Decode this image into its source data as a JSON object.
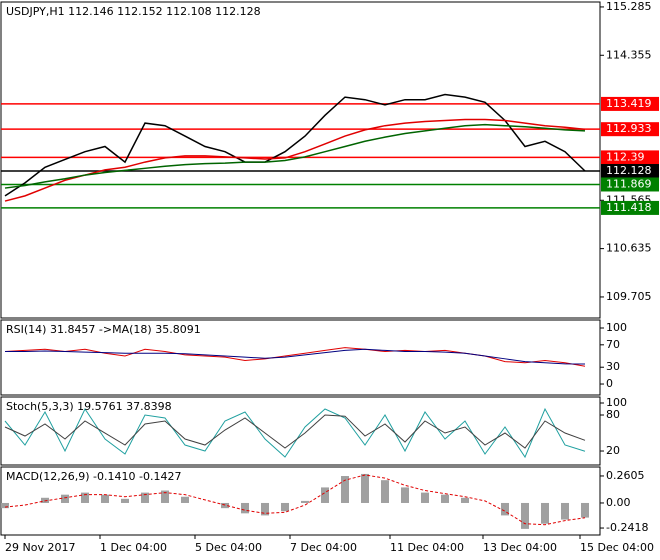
{
  "chart_data": [
    {
      "type": "line",
      "title": "USDJPY,H1  112.146 112.152 112.108 112.128",
      "ylim": [
        109.3,
        115.38
      ],
      "yticks": [
        115.285,
        114.355,
        111.565,
        110.635,
        109.705
      ],
      "levels": [
        {
          "value": 113.419,
          "color": "#ff0000"
        },
        {
          "value": 112.933,
          "color": "#ff0000"
        },
        {
          "value": 112.39,
          "color": "#ff0000"
        },
        {
          "value": 112.128,
          "color": "#000000"
        },
        {
          "value": 111.869,
          "color": "#008000"
        },
        {
          "value": 111.418,
          "color": "#008000"
        }
      ],
      "series": [
        {
          "color": "#000000",
          "values": [
            111.65,
            111.9,
            112.2,
            112.35,
            112.5,
            112.6,
            112.3,
            113.05,
            113.0,
            112.8,
            112.6,
            112.5,
            112.3,
            112.3,
            112.5,
            112.8,
            113.2,
            113.55,
            113.5,
            113.4,
            113.5,
            113.5,
            113.6,
            113.55,
            113.45,
            113.1,
            112.6,
            112.7,
            112.5,
            112.128
          ]
        },
        {
          "color": "#e00000",
          "values": [
            111.55,
            111.65,
            111.8,
            111.95,
            112.05,
            112.15,
            112.2,
            112.3,
            112.38,
            112.42,
            112.42,
            112.4,
            112.38,
            112.36,
            112.38,
            112.5,
            112.65,
            112.8,
            112.92,
            113.0,
            113.05,
            113.08,
            113.1,
            113.12,
            113.12,
            113.1,
            113.05,
            113.0,
            112.97,
            112.93
          ]
        },
        {
          "color": "#006400",
          "values": [
            111.8,
            111.85,
            111.92,
            111.98,
            112.05,
            112.1,
            112.14,
            112.18,
            112.22,
            112.25,
            112.27,
            112.28,
            112.3,
            112.3,
            112.33,
            112.4,
            112.5,
            112.6,
            112.7,
            112.78,
            112.85,
            112.9,
            112.95,
            113.0,
            113.02,
            113.0,
            112.98,
            112.95,
            112.92,
            112.9
          ]
        }
      ]
    },
    {
      "type": "line",
      "title": "RSI(14) 31.8457  ->MA(18) 35.8091",
      "ylim": [
        -19.6,
        114.3
      ],
      "yticks": [
        100,
        70,
        30,
        0
      ],
      "series": [
        {
          "color": "#e00000",
          "values": [
            58,
            60,
            62,
            58,
            62,
            55,
            50,
            62,
            58,
            52,
            50,
            48,
            42,
            45,
            50,
            55,
            60,
            65,
            62,
            58,
            60,
            58,
            60,
            55,
            50,
            40,
            38,
            42,
            38,
            31.8
          ]
        },
        {
          "color": "#000080",
          "values": [
            58,
            58,
            59,
            58,
            57,
            56,
            55,
            55,
            55,
            54,
            52,
            50,
            48,
            46,
            48,
            52,
            56,
            60,
            62,
            60,
            58,
            58,
            57,
            55,
            50,
            45,
            40,
            38,
            36,
            35.8
          ]
        }
      ]
    },
    {
      "type": "line",
      "title": "Stoch(5,3,3) 19.5761 37.8398",
      "ylim": [
        -3.3,
        110
      ],
      "yticks": [
        100,
        80,
        20
      ],
      "series": [
        {
          "color": "#20a0a0",
          "values": [
            70,
            30,
            85,
            20,
            90,
            40,
            15,
            80,
            75,
            30,
            20,
            70,
            85,
            40,
            10,
            60,
            90,
            75,
            30,
            80,
            20,
            85,
            40,
            70,
            15,
            60,
            10,
            90,
            30,
            19.6
          ]
        },
        {
          "color": "#404040",
          "values": [
            60,
            45,
            65,
            40,
            70,
            50,
            30,
            65,
            70,
            40,
            30,
            55,
            75,
            50,
            25,
            50,
            80,
            78,
            45,
            65,
            35,
            70,
            50,
            60,
            30,
            50,
            25,
            70,
            50,
            37.8
          ]
        }
      ]
    },
    {
      "type": "bar",
      "title": "MACD(12,26,9) -0.1410 -0.1427",
      "ylim": [
        -0.309,
        0.347
      ],
      "yticks": [
        0.2605,
        {
          "value": 0,
          "label": "0.00"
        },
        -0.2418
      ],
      "xticks": [
        {
          "value": 0,
          "label": "29 Nov 2017"
        },
        {
          "value": 4.75,
          "label": "1 Dec 04:00"
        },
        {
          "value": 9.5,
          "label": "5 Dec 04:00"
        },
        {
          "value": 14.25,
          "label": "7 Dec 04:00"
        },
        {
          "value": 19.25,
          "label": "11 Dec 04:00"
        },
        {
          "value": 23.9,
          "label": "13 Dec 04:00"
        },
        {
          "value": 28.75,
          "label": "15 Dec 04:00"
        }
      ],
      "series": [
        {
          "color": "#a0a0a0",
          "style": "bar",
          "values": [
            -0.05,
            0.0,
            0.05,
            0.08,
            0.1,
            0.08,
            0.04,
            0.1,
            0.12,
            0.06,
            0.0,
            -0.05,
            -0.1,
            -0.12,
            -0.08,
            0.02,
            0.15,
            0.26,
            0.28,
            0.22,
            0.15,
            0.1,
            0.08,
            0.05,
            0.0,
            -0.12,
            -0.25,
            -0.2,
            -0.16,
            -0.141
          ]
        },
        {
          "color": "#e00000",
          "style": "dashed",
          "values": [
            -0.04,
            -0.02,
            0.02,
            0.05,
            0.08,
            0.08,
            0.06,
            0.08,
            0.1,
            0.08,
            0.03,
            -0.02,
            -0.07,
            -0.1,
            -0.09,
            -0.02,
            0.1,
            0.22,
            0.27,
            0.24,
            0.17,
            0.12,
            0.09,
            0.06,
            0.02,
            -0.08,
            -0.2,
            -0.21,
            -0.17,
            -0.1427
          ]
        }
      ]
    }
  ]
}
